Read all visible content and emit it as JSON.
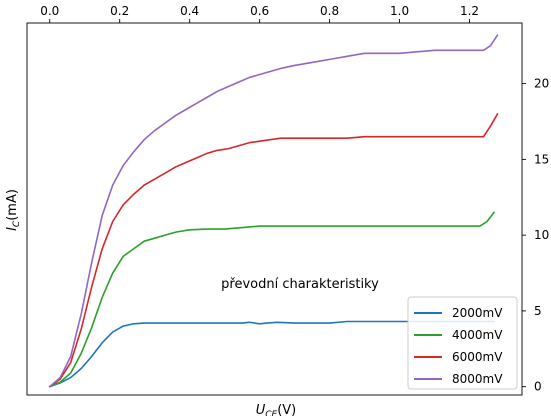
{
  "chart_data": {
    "type": "line",
    "xlabel": "U_CE(V)",
    "xlabel_main": "U",
    "xlabel_sub": "CE",
    "xlabel_unit": "(V)",
    "ylabel": "I_C(mA)",
    "ylabel_main": "I",
    "ylabel_sub": "C",
    "ylabel_unit": "(mA)",
    "x_ticks": [
      "0.0",
      "0.2",
      "0.4",
      "0.6",
      "0.8",
      "1.0",
      "1.2"
    ],
    "x_tick_values": [
      0.0,
      0.2,
      0.4,
      0.6,
      0.8,
      1.0,
      1.2
    ],
    "x_ticks_position": "top",
    "y_ticks": [
      "0",
      "5",
      "10",
      "15",
      "20"
    ],
    "y_tick_values": [
      0,
      5,
      10,
      15,
      20
    ],
    "y_ticks_position": "right",
    "xlim": [
      -0.065,
      1.35
    ],
    "ylim": [
      -0.55,
      24.0
    ],
    "grid": false,
    "legend_position": "lower-right",
    "annotation": "převodní charakteristiky",
    "annotation_anchor": {
      "x": 0.49,
      "y": 6.5
    },
    "series": [
      {
        "name": "2000mV",
        "color": "#1f77b4",
        "x": [
          0.0,
          0.03,
          0.06,
          0.09,
          0.12,
          0.15,
          0.18,
          0.21,
          0.24,
          0.27,
          0.3,
          0.4,
          0.5,
          0.55,
          0.57,
          0.6,
          0.62,
          0.65,
          0.7,
          0.75,
          0.8,
          0.85,
          0.9,
          1.0,
          1.2,
          1.27
        ],
        "y": [
          0.0,
          0.25,
          0.6,
          1.2,
          2.0,
          2.9,
          3.6,
          4.0,
          4.15,
          4.2,
          4.2,
          4.2,
          4.2,
          4.2,
          4.25,
          4.15,
          4.2,
          4.25,
          4.2,
          4.2,
          4.2,
          4.3,
          4.3,
          4.3,
          4.3,
          4.3
        ]
      },
      {
        "name": "4000mV",
        "color": "#2ca02c",
        "x": [
          0.0,
          0.03,
          0.06,
          0.09,
          0.12,
          0.15,
          0.18,
          0.21,
          0.24,
          0.27,
          0.3,
          0.33,
          0.36,
          0.4,
          0.45,
          0.5,
          0.55,
          0.6,
          0.7,
          0.8,
          0.9,
          1.0,
          1.1,
          1.23,
          1.25,
          1.27
        ],
        "y": [
          0.0,
          0.3,
          0.9,
          2.2,
          3.9,
          5.9,
          7.5,
          8.6,
          9.1,
          9.6,
          9.8,
          10.0,
          10.2,
          10.35,
          10.4,
          10.4,
          10.5,
          10.6,
          10.6,
          10.6,
          10.6,
          10.6,
          10.6,
          10.6,
          10.9,
          11.5
        ]
      },
      {
        "name": "6000mV",
        "color": "#d62728",
        "x": [
          0.0,
          0.03,
          0.06,
          0.09,
          0.12,
          0.15,
          0.18,
          0.21,
          0.24,
          0.27,
          0.3,
          0.33,
          0.36,
          0.39,
          0.42,
          0.45,
          0.48,
          0.51,
          0.54,
          0.57,
          0.6,
          0.63,
          0.66,
          0.7,
          0.8,
          0.85,
          0.9,
          1.0,
          1.1,
          1.24,
          1.26,
          1.28
        ],
        "y": [
          0.0,
          0.5,
          1.6,
          3.8,
          6.6,
          9.1,
          10.9,
          12.0,
          12.7,
          13.3,
          13.7,
          14.1,
          14.5,
          14.8,
          15.1,
          15.4,
          15.6,
          15.7,
          15.9,
          16.1,
          16.2,
          16.3,
          16.4,
          16.4,
          16.4,
          16.4,
          16.5,
          16.5,
          16.5,
          16.5,
          17.2,
          18.0
        ]
      },
      {
        "name": "8000mV",
        "color": "#9467bd",
        "x": [
          0.0,
          0.03,
          0.06,
          0.09,
          0.12,
          0.15,
          0.18,
          0.21,
          0.24,
          0.27,
          0.3,
          0.33,
          0.36,
          0.39,
          0.42,
          0.45,
          0.48,
          0.51,
          0.54,
          0.57,
          0.6,
          0.63,
          0.66,
          0.7,
          0.75,
          0.8,
          0.85,
          0.9,
          1.0,
          1.05,
          1.1,
          1.24,
          1.26,
          1.28
        ],
        "y": [
          0.0,
          0.6,
          2.0,
          4.8,
          8.2,
          11.3,
          13.3,
          14.6,
          15.5,
          16.3,
          16.9,
          17.4,
          17.9,
          18.3,
          18.7,
          19.1,
          19.5,
          19.8,
          20.1,
          20.4,
          20.6,
          20.8,
          21.0,
          21.2,
          21.4,
          21.6,
          21.8,
          22.0,
          22.0,
          22.1,
          22.2,
          22.2,
          22.5,
          23.2
        ]
      }
    ]
  }
}
